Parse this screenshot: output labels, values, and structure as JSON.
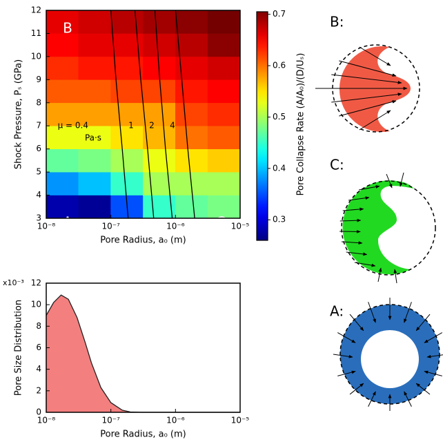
{
  "chart_data": [
    {
      "type": "heatmap",
      "xlabel": "Pore Radius, a₀ (m)",
      "ylabel": "Shock Pressure, Pₛ (GPa)",
      "colorbar_label": "Pore Collapse Rate (A/A₀)/(D/Uₛ)",
      "xscale": "log",
      "xlim": [
        1e-08,
        1e-05
      ],
      "xticks": [
        {
          "value": 1e-08,
          "label": "10⁻⁸"
        },
        {
          "value": 1e-07,
          "label": "10⁻⁷"
        },
        {
          "value": 1e-06,
          "label": "10⁻⁶"
        },
        {
          "value": 1e-05,
          "label": "10⁻⁵"
        }
      ],
      "ylim": [
        3,
        12
      ],
      "yticks": [
        3,
        4,
        5,
        6,
        7,
        8,
        9,
        10,
        11,
        12
      ],
      "xbins": [
        1e-08,
        3.16e-08,
        1e-07,
        3.16e-07,
        1e-06,
        3.16e-06,
        1e-05
      ],
      "ybins": [
        3,
        4,
        5,
        6,
        7,
        8,
        9,
        10,
        11,
        12
      ],
      "z": [
        [
          0.28,
          0.27,
          0.35,
          0.45,
          0.47,
          0.48
        ],
        [
          0.38,
          0.4,
          0.45,
          0.5,
          0.5,
          0.5
        ],
        [
          0.47,
          0.48,
          0.5,
          0.53,
          0.55,
          0.56
        ],
        [
          0.53,
          0.53,
          0.55,
          0.57,
          0.6,
          0.61
        ],
        [
          0.58,
          0.58,
          0.58,
          0.58,
          0.62,
          0.63
        ],
        [
          0.61,
          0.61,
          0.62,
          0.62,
          0.64,
          0.65
        ],
        [
          0.63,
          0.64,
          0.64,
          0.65,
          0.66,
          0.67
        ],
        [
          0.65,
          0.66,
          0.66,
          0.67,
          0.68,
          0.7
        ],
        [
          0.66,
          0.67,
          0.68,
          0.69,
          0.7,
          0.71
        ]
      ],
      "colormap": "jet",
      "clim": [
        0.26,
        0.705
      ],
      "cticks": [
        0.3,
        0.4,
        0.5,
        0.6,
        0.7
      ],
      "contours": [
        {
          "name": "μ = 0.4",
          "color": "#000000",
          "x": [
            1.85e-07,
            1.5e-07,
            1.2e-07,
            1e-07
          ],
          "y": [
            3,
            6,
            9,
            12
          ]
        },
        {
          "name": "1",
          "color": "#000000",
          "x": [
            4.6e-07,
            3.7e-07,
            2.9e-07,
            2.36e-07
          ],
          "y": [
            3,
            6,
            9,
            12
          ]
        },
        {
          "name": "2",
          "color": "#000000",
          "x": [
            8.9e-07,
            7e-07,
            5.7e-07,
            4.8e-07
          ],
          "y": [
            3,
            6,
            9,
            12
          ]
        },
        {
          "name": "4",
          "color": "#000000",
          "x": [
            1.98e-06,
            1.55e-06,
            1.25e-06,
            1e-06
          ],
          "y": [
            3,
            6,
            9,
            12
          ]
        }
      ],
      "annotations": [
        "Pa·s",
        "A",
        "B",
        "C"
      ]
    },
    {
      "type": "area",
      "xlabel": "Pore Radius, a₀ (m)",
      "ylabel": "Pore Size Distribution",
      "y_multiplier": "x10⁻³",
      "xscale": "log",
      "xlim": [
        1e-08,
        1e-05
      ],
      "xticks": [
        {
          "value": 1e-08,
          "label": "10⁻⁸"
        },
        {
          "value": 1e-07,
          "label": "10⁻⁷"
        },
        {
          "value": 1e-06,
          "label": "10⁻⁶"
        },
        {
          "value": 1e-05,
          "label": "10⁻⁵"
        }
      ],
      "ylim": [
        0,
        12
      ],
      "yticks": [
        0,
        2,
        4,
        6,
        8,
        10,
        12
      ],
      "x": [
        1e-08,
        1.3e-08,
        1.7e-08,
        2.2e-08,
        3e-08,
        4e-08,
        5e-08,
        7e-08,
        1e-07,
        1.5e-07,
        2e-07,
        3e-07,
        1e-06,
        1e-05
      ],
      "values": [
        9,
        10.2,
        10.9,
        10.5,
        8.8,
        6.5,
        4.6,
        2.3,
        0.9,
        0.2,
        0.03,
        0,
        0,
        0
      ],
      "color": "#f47f7f"
    }
  ],
  "diagrams": [
    {
      "label": "B:"
    },
    {
      "label": "C:"
    },
    {
      "label": "A:"
    }
  ]
}
